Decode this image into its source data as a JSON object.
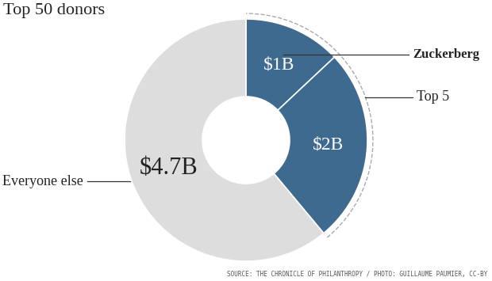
{
  "chart_data": {
    "type": "pie",
    "title": "Top 50 donors",
    "categories": [
      "Zuckerberg",
      null,
      "Everyone else"
    ],
    "values": [
      1,
      2,
      4.7
    ],
    "value_labels": [
      "$1B",
      "$2B",
      "$4.7B"
    ],
    "colors": [
      "#3f6a8f",
      "#3f6a8f",
      "#dddddd"
    ],
    "data_labels": true,
    "annotations": [
      {
        "text": "Top 5",
        "slices": [
          0,
          1
        ]
      }
    ],
    "source": "SOURCE: THE CHRONICLE OF PHILANTHROPY / PHOTO: GUILLAUME PAUMIER, CC-BY"
  }
}
